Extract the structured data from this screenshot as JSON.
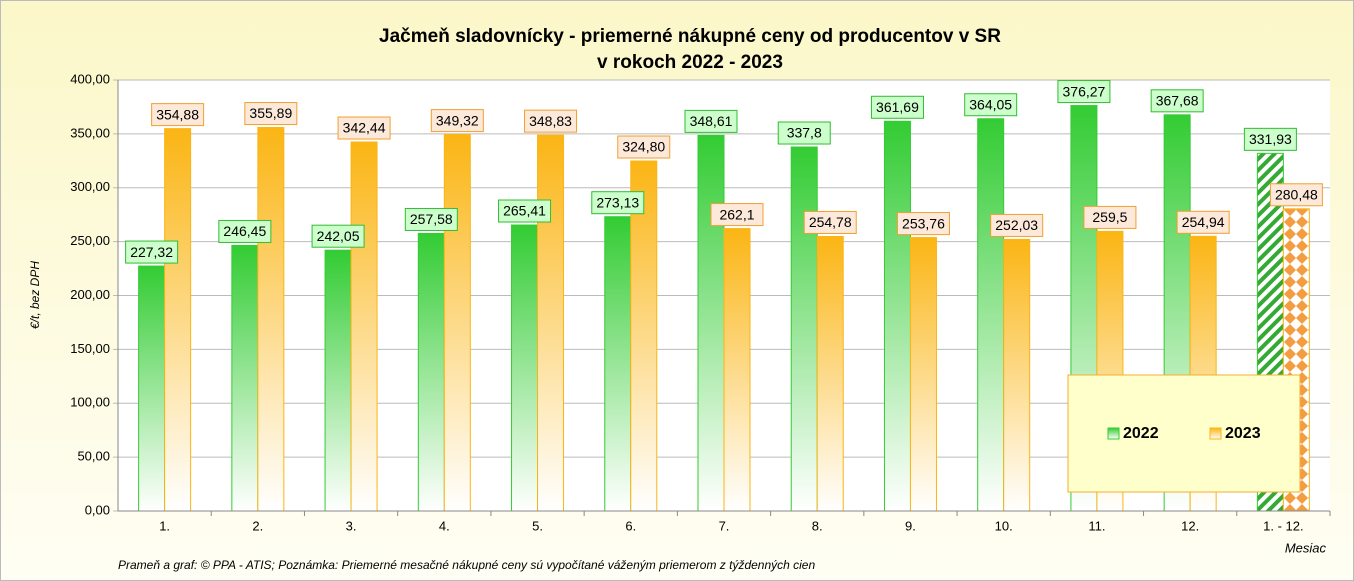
{
  "chart_data": {
    "type": "bar",
    "title": [
      "Jačmeň sladovnícky - priemerné nákupné ceny od producentov v SR",
      "v rokoch 2022 - 2023"
    ],
    "y_label": "€/t, bez DPH",
    "x_label": "Mesiac",
    "note": "Prameň a graf: © PPA - ATIS; Poznámka: Priemerné mesačné nákupné ceny sú vypočítané váženým priemerom z týždenných cien",
    "categories": [
      "1.",
      "2.",
      "3.",
      "4.",
      "5.",
      "6.",
      "7.",
      "8.",
      "9.",
      "10.",
      "11.",
      "12.",
      "1. - 12."
    ],
    "series": [
      {
        "name": "2022",
        "color": "#33cc33",
        "values": [
          227.32,
          246.45,
          242.05,
          257.58,
          265.41,
          273.13,
          348.61,
          337.8,
          361.69,
          364.05,
          376.27,
          367.68,
          331.93
        ],
        "value_labels": [
          "227,32",
          "246,45",
          "242,05",
          "257,58",
          "265,41",
          "273,13",
          "348,61",
          "337,8",
          "361,69",
          "364,05",
          "376,27",
          "367,68",
          "331,93"
        ]
      },
      {
        "name": "2023",
        "color": "#fbb514",
        "values": [
          354.88,
          355.89,
          342.44,
          349.32,
          348.83,
          324.8,
          262.1,
          254.78,
          253.76,
          252.03,
          259.5,
          254.94,
          280.48
        ],
        "value_labels": [
          "354,88",
          "355,89",
          "342,44",
          "349,32",
          "348,83",
          "324,80",
          "262,1",
          "254,78",
          "253,76",
          "252,03",
          "259,5",
          "254,94",
          "280,48"
        ]
      }
    ],
    "ylim": [
      0,
      400
    ],
    "yticks": [
      {
        "value": 0,
        "label": "0,00"
      },
      {
        "value": 50,
        "label": "50,00"
      },
      {
        "value": 100,
        "label": "100,00"
      },
      {
        "value": 150,
        "label": "150,00"
      },
      {
        "value": 200,
        "label": "200,00"
      },
      {
        "value": 250,
        "label": "250,00"
      },
      {
        "value": 300,
        "label": "300,00"
      },
      {
        "value": 350,
        "label": "350,00"
      },
      {
        "value": 400,
        "label": "400,00"
      }
    ],
    "grid": true,
    "pattern_last": true,
    "legend": "lower right"
  }
}
